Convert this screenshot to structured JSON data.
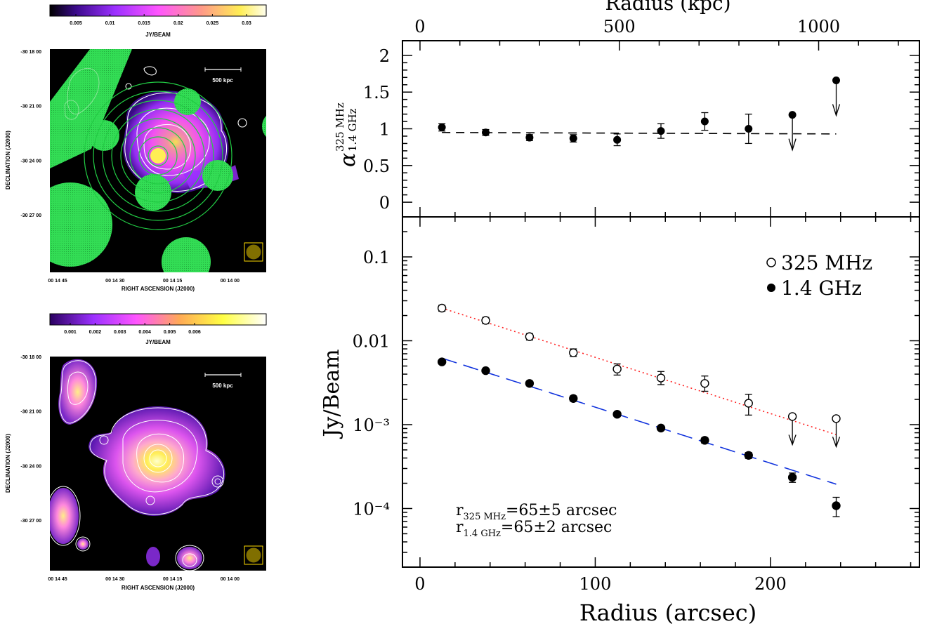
{
  "colors": {
    "green_mask": "#33dd55",
    "green_ring": "#22cc44",
    "dark_bg": "#000000",
    "dotted_fit": "#ff2222",
    "dashed_fit": "#1133dd"
  },
  "left_top": {
    "colorbar_ticks": [
      "0.005",
      "0.01",
      "0.015",
      "0.02",
      "0.025",
      "0.03"
    ],
    "colorbar_unit": "JY/BEAM",
    "scale_bar_label": "500 kpc",
    "dec_ticks": [
      "-30 18 00",
      "-30 21 00",
      "-30 24 00",
      "-30 27 00"
    ],
    "ra_ticks": [
      "00 14 45",
      "00 14 30",
      "00 14 15",
      "00 14 00"
    ],
    "ylabel": "DECLINATION (J2000)",
    "xlabel": "RIGHT ASCENSION (J2000)"
  },
  "left_bottom": {
    "colorbar_ticks": [
      "0.001",
      "0.002",
      "0.003",
      "0.004",
      "0.005",
      "0.006"
    ],
    "colorbar_unit": "JY/BEAM",
    "scale_bar_label": "500 kpc",
    "dec_ticks": [
      "-30 18 00",
      "-30 21 00",
      "-30 24 00",
      "-30 27 00"
    ],
    "ra_ticks": [
      "00 14 45",
      "00 14 30",
      "00 14 15",
      "00 14 00"
    ],
    "ylabel": "DECLINATION (J2000)",
    "xlabel": "RIGHT ASCENSION (J2000)"
  },
  "chart_data": [
    {
      "type": "scatter",
      "panel": "spectral-index",
      "ylabel": "α 325 MHz / 1.4 GHz",
      "ylabel_main": "α",
      "ylabel_sup": "325 MHz",
      "ylabel_sub": "1.4 GHz",
      "ylim": [
        -0.2,
        2.2
      ],
      "yticks": [
        "0",
        "0.5",
        "1",
        "1.5",
        "2"
      ],
      "x_top_label": "Radius (kpc)",
      "x_top_ticks": [
        "0",
        "500",
        "1000"
      ],
      "points": [
        {
          "x": 12.5,
          "y": 1.02,
          "err": 0.05
        },
        {
          "x": 37.5,
          "y": 0.95,
          "err": 0.04
        },
        {
          "x": 62.5,
          "y": 0.88,
          "err": 0.04
        },
        {
          "x": 87.5,
          "y": 0.87,
          "err": 0.05
        },
        {
          "x": 112.5,
          "y": 0.85,
          "err": 0.08
        },
        {
          "x": 137.5,
          "y": 0.97,
          "err": 0.1
        },
        {
          "x": 162.5,
          "y": 1.1,
          "err": 0.12
        },
        {
          "x": 187.5,
          "y": 1.0,
          "err": 0.2
        }
      ],
      "limits": [
        {
          "x": 212.5,
          "y": 1.19
        },
        {
          "x": 237.5,
          "y": 1.66
        }
      ],
      "fit": {
        "x": [
          12.5,
          237.5
        ],
        "y": [
          0.95,
          0.93
        ],
        "style": "dashed"
      }
    },
    {
      "type": "scatter",
      "panel": "surface-brightness",
      "ylabel": "Jy/Beam",
      "yscale": "log",
      "ylim": [
        2e-05,
        0.3
      ],
      "yticks": [
        "0.1",
        "0.01",
        "10⁻³",
        "10⁻⁴"
      ],
      "xlabel": "Radius (arcsec)",
      "xlim": [
        -10,
        285
      ],
      "xticks": [
        "0",
        "100",
        "200"
      ],
      "series": [
        {
          "name": "325 MHz",
          "marker": "open",
          "points": [
            {
              "x": 12.5,
              "y": 0.0245,
              "lo": 0.0225,
              "hi": 0.0265
            },
            {
              "x": 37.5,
              "y": 0.0175,
              "lo": 0.016,
              "hi": 0.019
            },
            {
              "x": 62.5,
              "y": 0.0112,
              "lo": 0.0102,
              "hi": 0.0122
            },
            {
              "x": 87.5,
              "y": 0.0072,
              "lo": 0.0065,
              "hi": 0.008
            },
            {
              "x": 112.5,
              "y": 0.0046,
              "lo": 0.0039,
              "hi": 0.0053
            },
            {
              "x": 137.5,
              "y": 0.0036,
              "lo": 0.003,
              "hi": 0.0043
            },
            {
              "x": 162.5,
              "y": 0.0031,
              "lo": 0.0025,
              "hi": 0.0038
            },
            {
              "x": 187.5,
              "y": 0.0018,
              "lo": 0.0013,
              "hi": 0.0023
            }
          ],
          "limits": [
            {
              "x": 212.5,
              "y": 0.00125
            },
            {
              "x": 237.5,
              "y": 0.00118
            }
          ],
          "fit": {
            "x": [
              12.5,
              237.5
            ],
            "y": [
              0.0245,
              0.00076
            ],
            "style": "dotted"
          }
        },
        {
          "name": "1.4 GHz",
          "marker": "filled",
          "points": [
            {
              "x": 12.5,
              "y": 0.0056,
              "lo": 0.0053,
              "hi": 0.0059
            },
            {
              "x": 37.5,
              "y": 0.0044,
              "lo": 0.0042,
              "hi": 0.0046
            },
            {
              "x": 62.5,
              "y": 0.0031,
              "lo": 0.0029,
              "hi": 0.0033
            },
            {
              "x": 87.5,
              "y": 0.00205,
              "lo": 0.0019,
              "hi": 0.0022
            },
            {
              "x": 112.5,
              "y": 0.00133,
              "lo": 0.00125,
              "hi": 0.00141
            },
            {
              "x": 137.5,
              "y": 0.00091,
              "lo": 0.00086,
              "hi": 0.00096
            },
            {
              "x": 162.5,
              "y": 0.00065,
              "lo": 0.0006,
              "hi": 0.0007
            },
            {
              "x": 187.5,
              "y": 0.00043,
              "lo": 0.000395,
              "hi": 0.000465
            },
            {
              "x": 212.5,
              "y": 0.000235,
              "lo": 0.000205,
              "hi": 0.000265
            },
            {
              "x": 237.5,
              "y": 0.000108,
              "lo": 8e-05,
              "hi": 0.000136
            }
          ],
          "fit": {
            "x": [
              12.5,
              237.5
            ],
            "y": [
              0.0062,
              0.000195
            ],
            "style": "dashed"
          }
        }
      ],
      "legend": {
        "items": [
          "325 MHz",
          "1.4 GHz"
        ],
        "placement": "top-right"
      },
      "annotations": [
        {
          "main": "r",
          "sub": "325 MHz",
          "rest": "=65±5 arcsec"
        },
        {
          "main": "r",
          "sub": "1.4 GHz",
          "rest": "=65±2 arcsec"
        }
      ]
    }
  ]
}
